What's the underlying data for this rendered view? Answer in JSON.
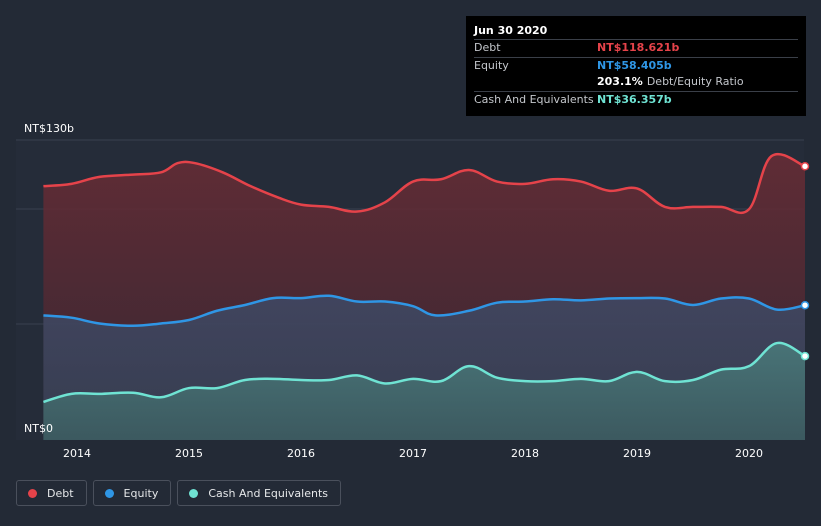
{
  "chart_data": {
    "type": "area",
    "title": "",
    "xlabel": "",
    "ylabel": "",
    "y_axis_labels": {
      "top": "NT$130b",
      "bottom": "NT$0"
    },
    "ylim": [
      0,
      130
    ],
    "xlim": [
      2013.7,
      2020.5
    ],
    "x_ticks": [
      "2014",
      "2015",
      "2016",
      "2017",
      "2018",
      "2019",
      "2020"
    ],
    "series": [
      {
        "name": "Debt",
        "color": "#e5434a",
        "x": [
          2013.7,
          2013.95,
          2014.2,
          2014.5,
          2014.75,
          2014.9,
          2015.05,
          2015.3,
          2015.55,
          2015.8,
          2016.0,
          2016.25,
          2016.5,
          2016.75,
          2017.0,
          2017.25,
          2017.5,
          2017.75,
          2018.0,
          2018.25,
          2018.5,
          2018.75,
          2019.0,
          2019.25,
          2019.5,
          2019.75,
          2020.0,
          2020.2,
          2020.5
        ],
        "values": [
          110,
          111,
          114,
          115,
          116,
          120,
          120,
          116,
          110,
          105,
          102,
          101,
          99,
          103,
          112,
          113,
          117,
          112,
          111,
          113,
          112,
          108,
          109,
          101,
          101,
          101,
          100,
          123,
          118.621
        ]
      },
      {
        "name": "Equity",
        "color": "#2f96e5",
        "x": [
          2013.7,
          2013.95,
          2014.2,
          2014.5,
          2014.75,
          2015.0,
          2015.25,
          2015.5,
          2015.75,
          2016.0,
          2016.25,
          2016.5,
          2016.75,
          2017.0,
          2017.2,
          2017.5,
          2017.75,
          2018.0,
          2018.25,
          2018.5,
          2018.75,
          2019.0,
          2019.25,
          2019.5,
          2019.75,
          2020.0,
          2020.25,
          2020.5
        ],
        "values": [
          54,
          53,
          50.5,
          49.5,
          50.5,
          52,
          56,
          58.5,
          61.5,
          61.5,
          62.5,
          60,
          60,
          58,
          54,
          56,
          59.5,
          60,
          61,
          60.5,
          61.3,
          61.5,
          61.3,
          58.5,
          61.3,
          61.3,
          56.5,
          58.405
        ]
      },
      {
        "name": "Cash And Equivalents",
        "color": "#6fe3d3",
        "x": [
          2013.7,
          2013.95,
          2014.2,
          2014.5,
          2014.75,
          2015.0,
          2015.25,
          2015.5,
          2015.75,
          2016.0,
          2016.25,
          2016.5,
          2016.75,
          2017.0,
          2017.25,
          2017.5,
          2017.75,
          2018.0,
          2018.25,
          2018.5,
          2018.75,
          2019.0,
          2019.25,
          2019.5,
          2019.75,
          2020.0,
          2020.25,
          2020.5
        ],
        "values": [
          16.5,
          20,
          20,
          20.5,
          18.5,
          22.5,
          22.5,
          26,
          26.5,
          26,
          26,
          28,
          24.5,
          26.5,
          25.5,
          32,
          27,
          25.5,
          25.5,
          26.5,
          25.5,
          29.5,
          25.5,
          26,
          30.5,
          32,
          42,
          36.357
        ]
      }
    ],
    "legend_position": "bottom-left",
    "grid": true
  },
  "tooltip": {
    "date": "Jun 30 2020",
    "rows": [
      {
        "name": "Debt",
        "value": "NT$118.621b",
        "color": "#e5434a"
      },
      {
        "name": "Equity",
        "value": "NT$58.405b",
        "color": "#2f96e5"
      },
      {
        "name": "",
        "value": "203.1%",
        "extra": "Debt/Equity Ratio",
        "color": "#ffffff"
      },
      {
        "name": "Cash And Equivalents",
        "value": "NT$36.357b",
        "color": "#6fe3d3"
      }
    ]
  },
  "legend": [
    {
      "label": "Debt",
      "color": "#e5434a"
    },
    {
      "label": "Equity",
      "color": "#2f96e5"
    },
    {
      "label": "Cash And Equivalents",
      "color": "#6fe3d3"
    }
  ]
}
